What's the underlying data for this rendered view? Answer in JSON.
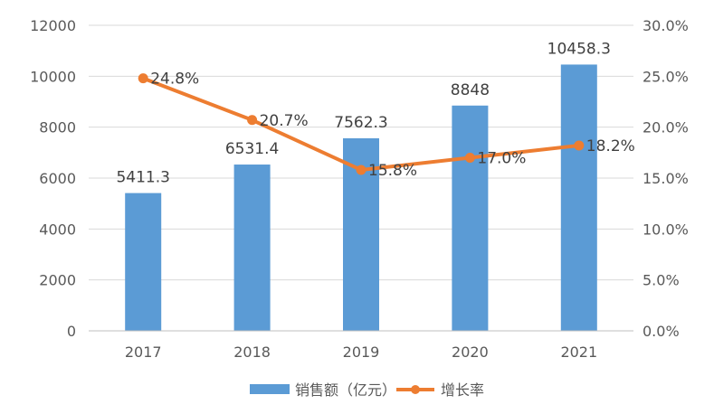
{
  "chart_data": {
    "type": "bar",
    "categories": [
      "2017",
      "2018",
      "2019",
      "2020",
      "2021"
    ],
    "series": [
      {
        "name": "销售额（亿元）",
        "type": "bar",
        "axis": "left",
        "values": [
          5411.3,
          6531.4,
          7562.3,
          8848,
          10458.3
        ],
        "labels": [
          "5411.3",
          "6531.4",
          "7562.3",
          "8848",
          "10458.3"
        ],
        "color": "#5b9bd5"
      },
      {
        "name": "增长率",
        "type": "line",
        "axis": "right",
        "values": [
          24.8,
          20.7,
          15.8,
          17.0,
          18.2
        ],
        "labels": [
          "24.8%",
          "20.7%",
          "15.8%",
          "17.0%",
          "18.2%"
        ],
        "color": "#ed7d31"
      }
    ],
    "y_left": {
      "ylim": [
        0,
        12000
      ],
      "ticks": [
        "0",
        "2000",
        "4000",
        "6000",
        "8000",
        "10000",
        "12000"
      ]
    },
    "y_right": {
      "ylim": [
        0,
        30
      ],
      "ticks": [
        "0.0%",
        "5.0%",
        "10.0%",
        "15.0%",
        "20.0%",
        "25.0%",
        "30.0%"
      ]
    },
    "grid": true,
    "legend_position": "bottom"
  }
}
